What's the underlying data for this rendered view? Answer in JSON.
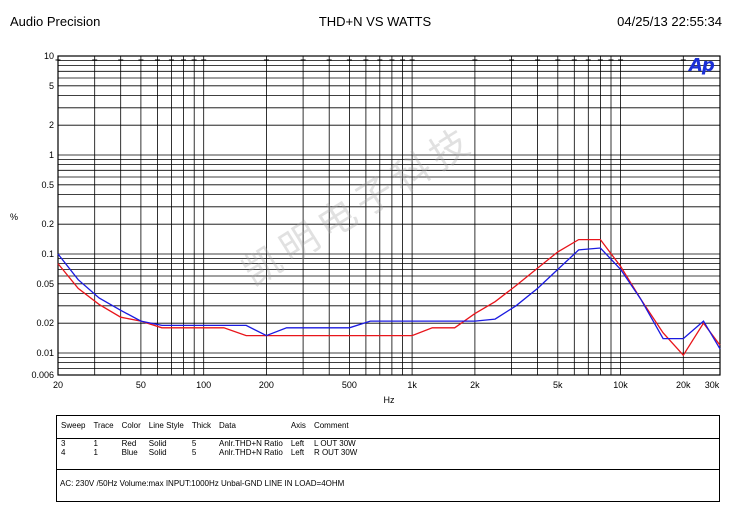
{
  "header": {
    "brand": "Audio Precision",
    "title": "THD+N  VS   WATTS",
    "timestamp": "04/25/13 22:55:34"
  },
  "logo": {
    "text": "Ap",
    "color": "#1a2fd6"
  },
  "watermark": {
    "text": "凯明电子科技"
  },
  "chart_data": {
    "type": "line",
    "title": "THD+N  VS   WATTS",
    "xlabel": "Hz",
    "ylabel": "%",
    "xscale": "log",
    "yscale": "log",
    "xlim": [
      20,
      30000
    ],
    "ylim": [
      0.006,
      10
    ],
    "grid": true,
    "x_ticks": [
      {
        "value": 20,
        "label": "20"
      },
      {
        "value": 50,
        "label": "50"
      },
      {
        "value": 100,
        "label": "100"
      },
      {
        "value": 200,
        "label": "200"
      },
      {
        "value": 500,
        "label": "500"
      },
      {
        "value": 1000,
        "label": "1k"
      },
      {
        "value": 2000,
        "label": "2k"
      },
      {
        "value": 5000,
        "label": "5k"
      },
      {
        "value": 10000,
        "label": "10k"
      },
      {
        "value": 20000,
        "label": "20k"
      },
      {
        "value": 30000,
        "label": "30k"
      }
    ],
    "y_ticks": [
      {
        "value": 10,
        "label": "10"
      },
      {
        "value": 5,
        "label": "5"
      },
      {
        "value": 2,
        "label": "2"
      },
      {
        "value": 1,
        "label": "1"
      },
      {
        "value": 0.5,
        "label": "0.5"
      },
      {
        "value": 0.2,
        "label": "0.2"
      },
      {
        "value": 0.1,
        "label": "0.1"
      },
      {
        "value": 0.05,
        "label": "0.05"
      },
      {
        "value": 0.02,
        "label": "0.02"
      },
      {
        "value": 0.01,
        "label": "0.01"
      },
      {
        "value": 0.006,
        "label": "0.006"
      }
    ],
    "series": [
      {
        "name": "L OUT 30W",
        "color": "#e8151b",
        "x": [
          20,
          25,
          31.5,
          40,
          50,
          63,
          80,
          100,
          125,
          160,
          200,
          250,
          315,
          400,
          500,
          630,
          800,
          1000,
          1250,
          1600,
          2000,
          2500,
          3150,
          4000,
          5000,
          6300,
          8000,
          10000,
          12500,
          16000,
          20000,
          25000,
          30000
        ],
        "y": [
          0.08,
          0.045,
          0.031,
          0.023,
          0.021,
          0.018,
          0.018,
          0.018,
          0.018,
          0.015,
          0.015,
          0.015,
          0.015,
          0.015,
          0.015,
          0.015,
          0.015,
          0.015,
          0.018,
          0.018,
          0.025,
          0.033,
          0.048,
          0.072,
          0.105,
          0.14,
          0.14,
          0.075,
          0.035,
          0.016,
          0.0095,
          0.02,
          0.012
        ]
      },
      {
        "name": "R OUT 30W",
        "color": "#1a1ae0",
        "x": [
          20,
          25,
          31.5,
          40,
          50,
          63,
          80,
          100,
          125,
          160,
          200,
          250,
          315,
          400,
          500,
          630,
          800,
          1000,
          1250,
          1600,
          2000,
          2500,
          3150,
          4000,
          5000,
          6300,
          8000,
          10000,
          12500,
          16000,
          20000,
          25000,
          30000
        ],
        "y": [
          0.1,
          0.055,
          0.036,
          0.027,
          0.021,
          0.019,
          0.019,
          0.019,
          0.019,
          0.019,
          0.015,
          0.018,
          0.018,
          0.018,
          0.018,
          0.021,
          0.021,
          0.021,
          0.021,
          0.021,
          0.021,
          0.022,
          0.03,
          0.045,
          0.07,
          0.11,
          0.115,
          0.07,
          0.035,
          0.014,
          0.014,
          0.021,
          0.011
        ]
      }
    ]
  },
  "legend": {
    "headers": [
      "Sweep",
      "Trace",
      "Color",
      "Line Style",
      "Thick",
      "Data",
      "Axis",
      "Comment"
    ],
    "rows": [
      [
        "3",
        "1",
        "Red",
        "Solid",
        "5",
        "Anlr.THD+N Ratio",
        "Left",
        "L OUT 30W"
      ],
      [
        "4",
        "1",
        "Blue",
        "Solid",
        "5",
        "Anlr.THD+N Ratio",
        "Left",
        "R OUT 30W"
      ]
    ],
    "settings": "AC: 230V /50Hz    Volume:max    INPUT:1000Hz   Unbal-GND    LINE IN    LOAD=4OHM"
  }
}
